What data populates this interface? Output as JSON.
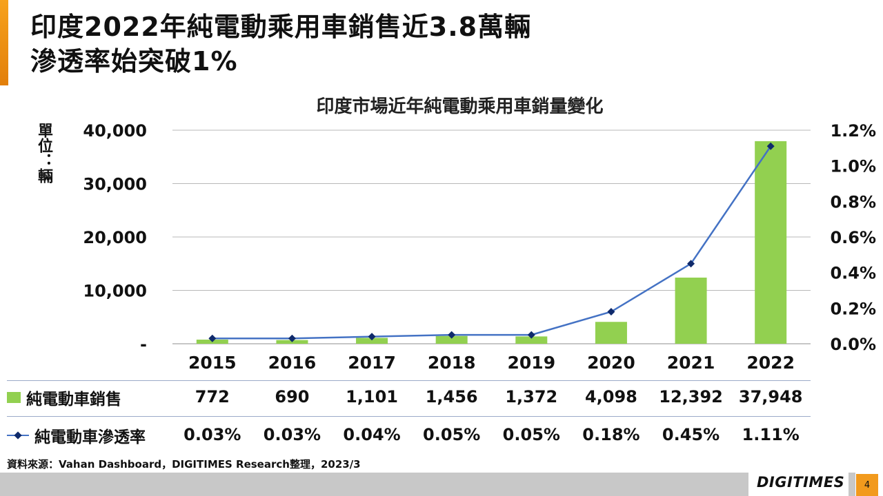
{
  "slide": {
    "title": "印度2022年純電動乘用車銷售近3.8萬輛\n滲透率始突破1%",
    "source": "資料來源：Vahan Dashboard，DIGITIMES Research整理，2023/3",
    "logo": "DIGITIMES",
    "page_number": "4",
    "accent_color": "#f29a1d"
  },
  "chart_data": {
    "type": "bar",
    "title": "印度市場近年純電動乘用車銷量變化",
    "unit_label": "單位：輛",
    "categories": [
      "2015",
      "2016",
      "2017",
      "2018",
      "2019",
      "2020",
      "2021",
      "2022"
    ],
    "ylim": [
      0,
      40000
    ],
    "y2lim": [
      0,
      0.012
    ],
    "y_ticks": [
      "-",
      "10,000",
      "20,000",
      "30,000",
      "40,000"
    ],
    "y2_ticks": [
      "0.0%",
      "0.2%",
      "0.4%",
      "0.6%",
      "0.8%",
      "1.0%",
      "1.2%"
    ],
    "grid": true,
    "series": [
      {
        "name": "純電動車銷售",
        "kind": "bar",
        "axis": "left",
        "color": "#92d050",
        "values": [
          772,
          690,
          1101,
          1456,
          1372,
          4098,
          12392,
          37948
        ],
        "labels": [
          "772",
          "690",
          "1,101",
          "1,456",
          "1,372",
          "4,098",
          "12,392",
          "37,948"
        ]
      },
      {
        "name": "純電動車滲透率",
        "kind": "line",
        "axis": "right",
        "color": "#4472c4",
        "marker_color": "#0f2a6b",
        "values": [
          0.0003,
          0.0003,
          0.0004,
          0.0005,
          0.0005,
          0.0018,
          0.0045,
          0.0111
        ],
        "labels": [
          "0.03%",
          "0.03%",
          "0.04%",
          "0.05%",
          "0.05%",
          "0.18%",
          "0.45%",
          "1.11%"
        ]
      }
    ]
  }
}
